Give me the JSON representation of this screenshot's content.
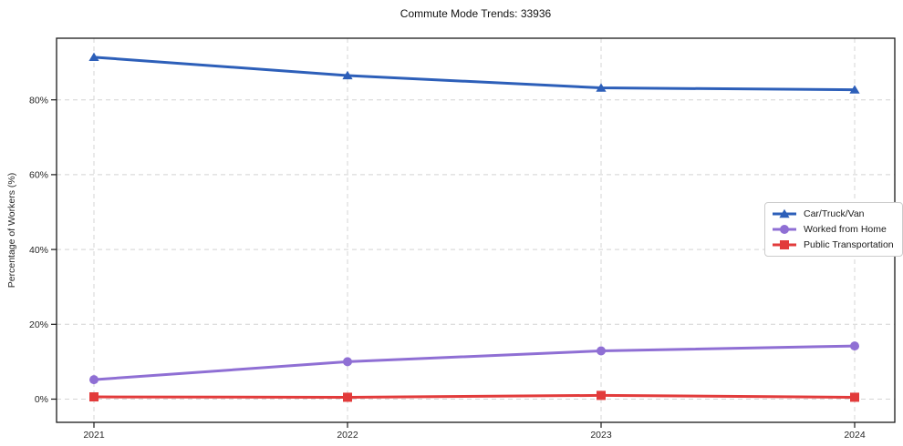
{
  "title": "Commute Mode Trends: 33936",
  "chart_data": {
    "type": "line",
    "x": [
      "2021",
      "2022",
      "2023",
      "2024"
    ],
    "series": [
      {
        "name": "Car/Truck/Van",
        "color": "#2d5fb9",
        "marker": "triangle",
        "values": [
          91.4,
          86.5,
          83.2,
          82.7
        ]
      },
      {
        "name": "Worked from Home",
        "color": "#8f6fd4",
        "marker": "circle",
        "values": [
          5.2,
          10.0,
          12.9,
          14.2
        ]
      },
      {
        "name": "Public Transportation",
        "color": "#e23b3b",
        "marker": "square",
        "values": [
          0.6,
          0.5,
          1.0,
          0.5
        ]
      }
    ],
    "xlabel": "",
    "ylabel": "Percentage of Workers (%)",
    "yticks": [
      0,
      20,
      40,
      60,
      80
    ],
    "ytick_labels": [
      "0%",
      "20%",
      "40%",
      "60%",
      "80%"
    ],
    "ylim": [
      -6,
      96.5
    ],
    "grid": true,
    "grid_style": "dashed",
    "legend_position": "center right",
    "colors": {
      "grid": "#d4d4d4",
      "frame": "#1a1a1a",
      "tick_text": "#262626",
      "background": "#ffffff"
    }
  }
}
